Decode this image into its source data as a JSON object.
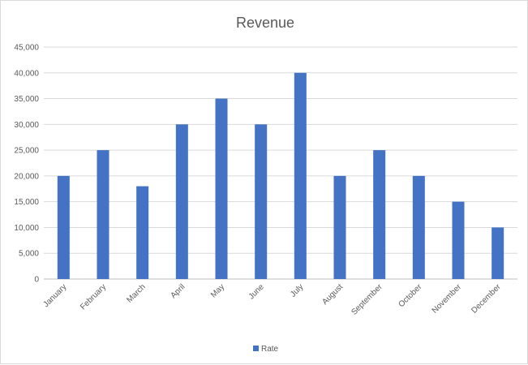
{
  "chart_data": {
    "type": "bar",
    "title": "Revenue",
    "categories": [
      "January",
      "February",
      "March",
      "April",
      "May",
      "June",
      "July",
      "August",
      "September",
      "October",
      "November",
      "December"
    ],
    "series": [
      {
        "name": "Rate",
        "values": [
          20000,
          25000,
          18000,
          30000,
          35000,
          30000,
          40000,
          20000,
          25000,
          20000,
          15000,
          10000
        ]
      }
    ],
    "ylim": [
      0,
      45000
    ],
    "yticks": [
      "0",
      "5,000",
      "10,000",
      "15,000",
      "20,000",
      "25,000",
      "30,000",
      "35,000",
      "40,000",
      "45,000"
    ],
    "grid": true,
    "legend_position": "bottom",
    "colors": {
      "series": "#4472c4",
      "grid": "#d9d9d9",
      "text": "#595959"
    }
  }
}
